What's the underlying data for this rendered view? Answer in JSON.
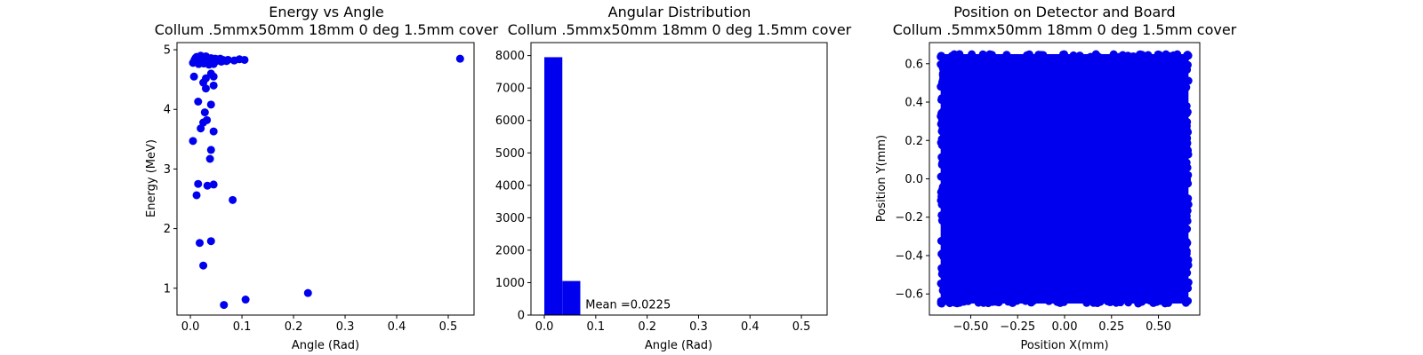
{
  "chart_data": [
    {
      "type": "scatter",
      "title": "Energy vs Angle",
      "subtitle": "Collum .5mmx50mm 18mm 0 deg 1.5mm cover",
      "xlabel": "Angle (Rad)",
      "ylabel": "Energy (MeV)",
      "xlim": [
        -0.026,
        0.55
      ],
      "ylim": [
        0.55,
        5.12
      ],
      "xticks": [
        0.0,
        0.1,
        0.2,
        0.3,
        0.4,
        0.5
      ],
      "xtick_labels": [
        "0.0",
        "0.1",
        "0.2",
        "0.3",
        "0.4",
        "0.5"
      ],
      "yticks": [
        1,
        2,
        3,
        4,
        5
      ],
      "ytick_labels": [
        "1",
        "2",
        "3",
        "4",
        "5"
      ],
      "grid": false,
      "color": "#0000ee",
      "points": [
        [
          0.005,
          4.78
        ],
        [
          0.008,
          4.83
        ],
        [
          0.01,
          4.86
        ],
        [
          0.012,
          4.8
        ],
        [
          0.015,
          4.84
        ],
        [
          0.018,
          4.88
        ],
        [
          0.02,
          4.81
        ],
        [
          0.022,
          4.85
        ],
        [
          0.025,
          4.79
        ],
        [
          0.028,
          4.86
        ],
        [
          0.03,
          4.82
        ],
        [
          0.032,
          4.87
        ],
        [
          0.035,
          4.8
        ],
        [
          0.038,
          4.84
        ],
        [
          0.04,
          4.86
        ],
        [
          0.042,
          4.79
        ],
        [
          0.045,
          4.83
        ],
        [
          0.048,
          4.85
        ],
        [
          0.05,
          4.81
        ],
        [
          0.052,
          4.84
        ],
        [
          0.055,
          4.82
        ],
        [
          0.058,
          4.85
        ],
        [
          0.06,
          4.8
        ],
        [
          0.063,
          4.83
        ],
        [
          0.066,
          4.82
        ],
        [
          0.07,
          4.81
        ],
        [
          0.073,
          4.83
        ],
        [
          0.085,
          4.82
        ],
        [
          0.095,
          4.84
        ],
        [
          0.105,
          4.83
        ],
        [
          0.012,
          4.88
        ],
        [
          0.02,
          4.9
        ],
        [
          0.03,
          4.89
        ],
        [
          0.016,
          4.76
        ],
        [
          0.026,
          4.77
        ],
        [
          0.036,
          4.75
        ],
        [
          0.045,
          4.76
        ],
        [
          0.007,
          4.55
        ],
        [
          0.04,
          4.6
        ],
        [
          0.03,
          4.52
        ],
        [
          0.045,
          4.55
        ],
        [
          0.025,
          4.45
        ],
        [
          0.03,
          4.35
        ],
        [
          0.045,
          4.4
        ],
        [
          0.015,
          4.13
        ],
        [
          0.04,
          4.08
        ],
        [
          0.028,
          3.95
        ],
        [
          0.032,
          3.82
        ],
        [
          0.025,
          3.78
        ],
        [
          0.02,
          3.68
        ],
        [
          0.045,
          3.63
        ],
        [
          0.005,
          3.47
        ],
        [
          0.04,
          3.32
        ],
        [
          0.038,
          3.17
        ],
        [
          0.015,
          2.75
        ],
        [
          0.033,
          2.72
        ],
        [
          0.045,
          2.74
        ],
        [
          0.012,
          2.56
        ],
        [
          0.082,
          2.48
        ],
        [
          0.018,
          1.76
        ],
        [
          0.04,
          1.79
        ],
        [
          0.025,
          1.38
        ],
        [
          0.065,
          0.72
        ],
        [
          0.107,
          0.81
        ],
        [
          0.228,
          0.92
        ],
        [
          0.523,
          4.85
        ]
      ]
    },
    {
      "type": "bar",
      "title": "Angular Distribution",
      "subtitle": "Collum .5mmx50mm 18mm 0 deg 1.5mm cover",
      "xlabel": "Angle (Rad)",
      "ylabel": "",
      "xlim": [
        -0.026,
        0.55
      ],
      "ylim": [
        0,
        8400
      ],
      "xticks": [
        0.0,
        0.1,
        0.2,
        0.3,
        0.4,
        0.5
      ],
      "xtick_labels": [
        "0.0",
        "0.1",
        "0.2",
        "0.3",
        "0.4",
        "0.5"
      ],
      "yticks": [
        0,
        1000,
        2000,
        3000,
        4000,
        5000,
        6000,
        7000,
        8000
      ],
      "ytick_labels": [
        "0",
        "1000",
        "2000",
        "3000",
        "4000",
        "5000",
        "6000",
        "7000",
        "8000"
      ],
      "grid": false,
      "color": "#0000ee",
      "bins": [
        {
          "x0": 0.0,
          "x1": 0.035,
          "value": 7950
        },
        {
          "x0": 0.035,
          "x1": 0.07,
          "value": 1050
        },
        {
          "x0": 0.07,
          "x1": 0.105,
          "value": 4
        },
        {
          "x0": 0.105,
          "x1": 0.14,
          "value": 2
        },
        {
          "x0": 0.21,
          "x1": 0.245,
          "value": 1
        },
        {
          "x0": 0.49,
          "x1": 0.525,
          "value": 1
        }
      ],
      "annotation": {
        "text": "Mean =0.0225",
        "x": 0.08,
        "y": 120
      }
    },
    {
      "type": "scatter",
      "title": "Position on Detector and Board",
      "subtitle": "Collum .5mmx50mm 18mm 0 deg 1.5mm cover",
      "xlabel": "Position X(mm)",
      "ylabel": "Position Y(mm)",
      "xlim": [
        -0.72,
        0.72
      ],
      "ylim": [
        -0.71,
        0.71
      ],
      "xticks": [
        -0.5,
        -0.25,
        0.0,
        0.25,
        0.5
      ],
      "xtick_labels": [
        "−0.50",
        "−0.25",
        "0.00",
        "0.25",
        "0.50"
      ],
      "yticks": [
        -0.6,
        -0.4,
        -0.2,
        0.0,
        0.2,
        0.4,
        0.6
      ],
      "ytick_labels": [
        "−0.6",
        "−0.4",
        "−0.2",
        "0.0",
        "0.2",
        "0.4",
        "0.6"
      ],
      "grid": false,
      "color": "#0000ee",
      "region": {
        "x": [
          -0.66,
          0.66
        ],
        "y": [
          -0.65,
          0.65
        ]
      }
    }
  ]
}
